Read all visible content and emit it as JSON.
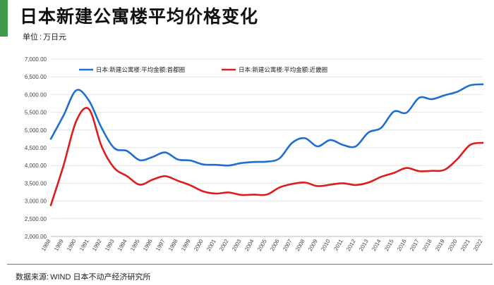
{
  "header": {
    "title": "日本新建公寓楼平均价格变化",
    "unit_label": "单位",
    "unit_sep": ":",
    "unit_value": "万日元"
  },
  "footer": {
    "source_label": "数据来源:",
    "source_value": "WIND 日本不动产经济研究所"
  },
  "colors": {
    "accent": "#3c9a4a",
    "series_capital": "#1f6fd1",
    "series_kinki": "#e01b1b",
    "grid": "#e4e4e4"
  },
  "chart_data": {
    "type": "line",
    "title": "日本新建公寓楼平均价格变化",
    "xlabel": "",
    "ylabel": "",
    "ylim": [
      2000,
      7000
    ],
    "yticks": [
      2000,
      2500,
      3000,
      3500,
      4000,
      4500,
      5000,
      5500,
      6000,
      6500,
      7000
    ],
    "ytick_labels": [
      "2,000.00",
      "2,500.00",
      "3,000.00",
      "3,500.00",
      "4,000.00",
      "4,500.00",
      "5,000.00",
      "5,500.00",
      "6,000.00",
      "6,500.00",
      "7,000.00"
    ],
    "grid": true,
    "legend_position": "top",
    "x": [
      "1988",
      "1989",
      "1990",
      "1991",
      "1992",
      "1993",
      "1994",
      "1995",
      "1996",
      "1997",
      "1998",
      "1999",
      "2000",
      "2001",
      "2002",
      "2003",
      "2004",
      "2005",
      "2006",
      "2007",
      "2008",
      "2009",
      "2010",
      "2011",
      "2012",
      "2013",
      "2014",
      "2015",
      "2016",
      "2017",
      "2018",
      "2019",
      "2020",
      "2021",
      "2022"
    ],
    "series": [
      {
        "name": "日本:新建公寓楼:平均金额:首都圈",
        "color": "#1f6fd1",
        "values": [
          4750,
          5410,
          6120,
          5830,
          5060,
          4490,
          4410,
          4150,
          4240,
          4370,
          4170,
          4140,
          4030,
          4020,
          4000,
          4070,
          4100,
          4110,
          4200,
          4640,
          4770,
          4540,
          4720,
          4580,
          4540,
          4930,
          5060,
          5520,
          5490,
          5910,
          5870,
          5980,
          6080,
          6260,
          6290
        ]
      },
      {
        "name": "日本:新建公寓楼:平均金额:近畿圈",
        "color": "#e01b1b",
        "values": [
          2880,
          4000,
          5250,
          5590,
          4540,
          3930,
          3700,
          3460,
          3600,
          3700,
          3570,
          3440,
          3270,
          3210,
          3240,
          3170,
          3180,
          3180,
          3380,
          3480,
          3520,
          3420,
          3460,
          3500,
          3450,
          3520,
          3680,
          3790,
          3930,
          3840,
          3850,
          3880,
          4180,
          4580,
          4640
        ]
      }
    ]
  }
}
